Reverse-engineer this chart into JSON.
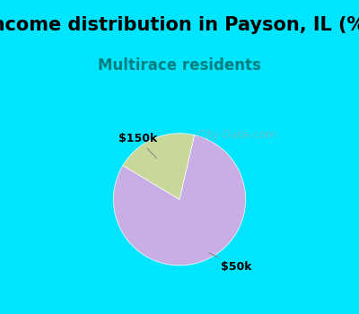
{
  "title": "Income distribution in Payson, IL (%)",
  "subtitle": "Multirace residents",
  "title_fontsize": 15,
  "subtitle_fontsize": 12,
  "title_color": "#000000",
  "subtitle_color": "#008080",
  "slices": [
    {
      "label": "$50k",
      "value": 80.0,
      "color": "#c9aee5"
    },
    {
      "label": "$150k",
      "value": 20.0,
      "color": "#c8d89a"
    }
  ],
  "label_fontsize": 9,
  "background_top": "#00e5ff",
  "background_chart": "#e8f5e9",
  "watermark": "City-Data.com",
  "start_angle": 90
}
